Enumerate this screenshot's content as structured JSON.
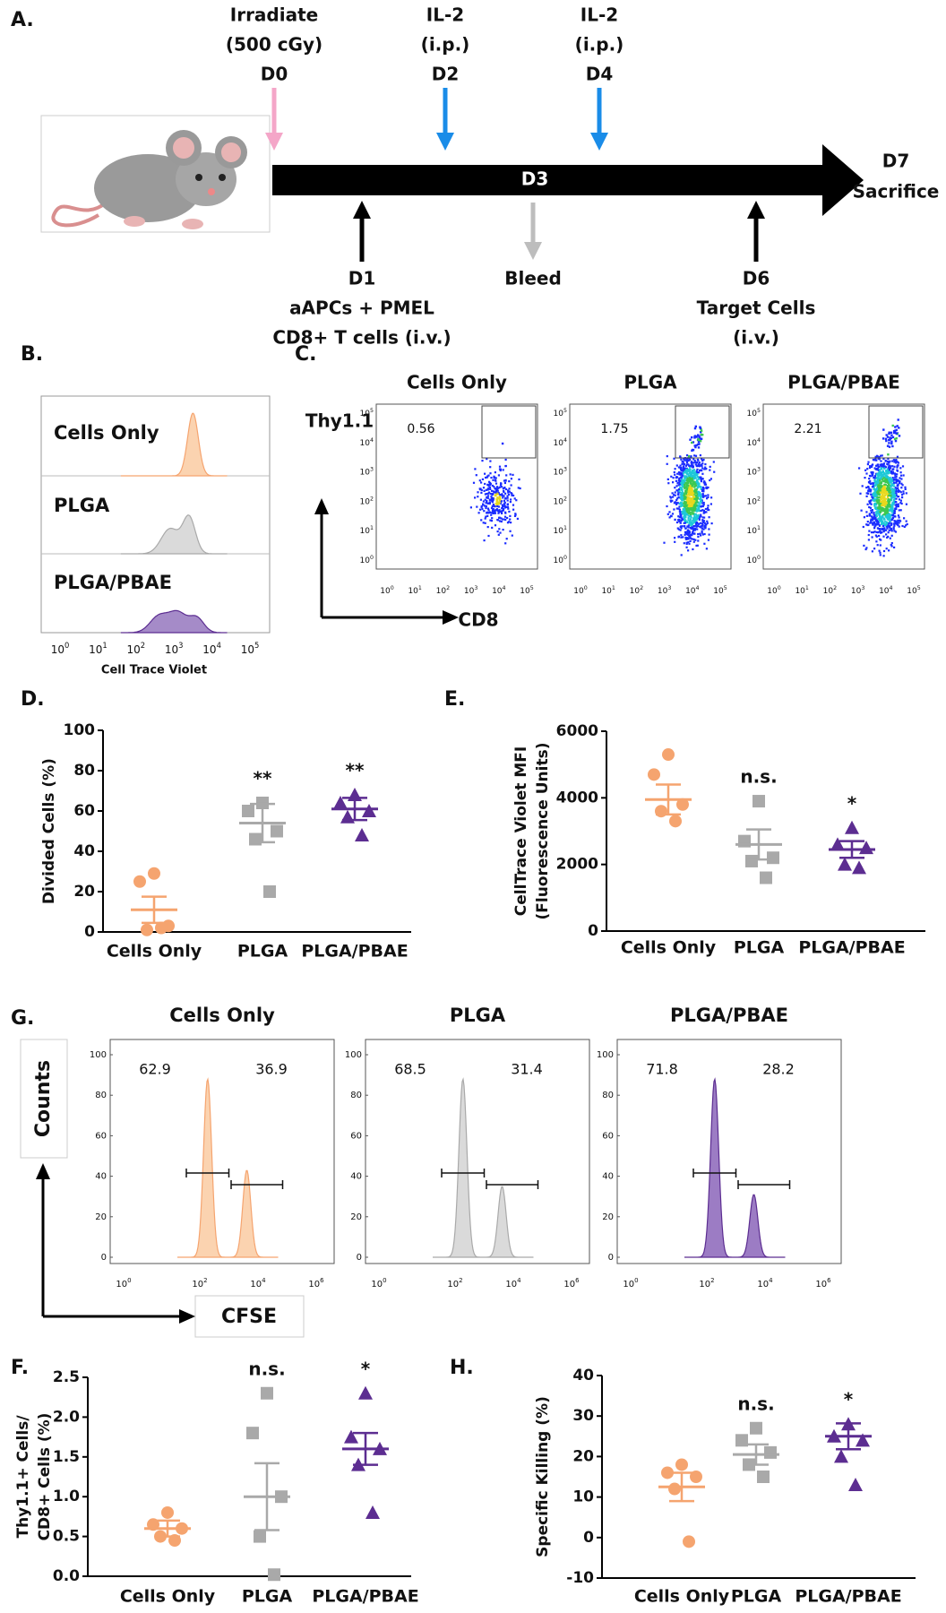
{
  "panel_a": {
    "label": "A.",
    "events": [
      {
        "lines": [
          "Irradiate",
          "(500 cGy)",
          "D0"
        ]
      },
      {
        "lines": [
          "IL-2",
          "(i.p.)",
          "D2"
        ]
      },
      {
        "lines": [
          "IL-2",
          "(i.p.)",
          "D4"
        ]
      },
      {
        "lines": [
          "D1",
          "aAPCs + PMEL",
          "CD8+ T cells (i.v.)"
        ]
      },
      {
        "lines": [
          "Bleed"
        ]
      },
      {
        "lines": [
          "D6",
          "Target Cells",
          "(i.v.)"
        ]
      }
    ],
    "middle": "D3",
    "end": [
      "D7",
      "Sacrifice"
    ]
  },
  "panel_b": {
    "label": "B.",
    "rows": [
      "Cells Only",
      "PLGA",
      "PLGA/PBAE"
    ],
    "x_label": "Cell Trace Violet",
    "x_ticks": {
      "base": "10",
      "exponents": [
        0,
        1,
        2,
        3,
        4,
        5
      ]
    }
  },
  "panel_c": {
    "label": "C.",
    "y_label": "Thy1.1",
    "x_label": "CD8",
    "plots": [
      {
        "title": "Cells Only",
        "gate_percent": 0.56
      },
      {
        "title": "PLGA",
        "gate_percent": 1.75
      },
      {
        "title": "PLGA/PBAE",
        "gate_percent": 2.21
      }
    ],
    "ticks": {
      "base": "10",
      "exponents": [
        0,
        1,
        2,
        3,
        4,
        5
      ]
    }
  },
  "panel_g": {
    "label": "G.",
    "y_label": "Counts",
    "x_label": "CFSE",
    "plots": [
      {
        "title": "Cells Only",
        "left_percent": 62.9,
        "right_percent": 36.9
      },
      {
        "title": "PLGA",
        "left_percent": 68.5,
        "right_percent": 31.4
      },
      {
        "title": "PLGA/PBAE",
        "left_percent": 71.8,
        "right_percent": 28.2
      }
    ],
    "yticks": [
      0,
      20,
      40,
      60,
      80,
      100
    ],
    "xticks": {
      "base": "10",
      "exponents": [
        0,
        2,
        4,
        6
      ]
    }
  },
  "chart_data": [
    {
      "type": "dot",
      "panel_label": "D.",
      "y_label": [
        "Divided Cells (%)"
      ],
      "categories": [
        "Cells Only",
        "PLGA",
        "PLGA/PBAE"
      ],
      "colors": [
        "#f5a46f",
        "#a9a9a9",
        "#5c2d91"
      ],
      "markers": [
        "circle",
        "square",
        "triangle"
      ],
      "points": [
        [
          29,
          25,
          3,
          1,
          2
        ],
        [
          64,
          60,
          50,
          46,
          20
        ],
        [
          68,
          64,
          60,
          57,
          48
        ]
      ],
      "means": [
        11,
        54,
        61
      ],
      "sems": [
        6.5,
        9.5,
        5.5
      ],
      "annotations": [
        null,
        "**",
        "**"
      ],
      "ylim": [
        0,
        100
      ],
      "yticks": [
        0,
        20,
        40,
        60,
        80,
        100
      ]
    },
    {
      "type": "dot",
      "panel_label": "E.",
      "y_label": [
        "CellTrace Violet MFI",
        "(Fluorescence Units)"
      ],
      "categories": [
        "Cells Only",
        "PLGA",
        "PLGA/PBAE"
      ],
      "colors": [
        "#f5a46f",
        "#a9a9a9",
        "#5c2d91"
      ],
      "markers": [
        "circle",
        "square",
        "triangle"
      ],
      "points": [
        [
          5300,
          4700,
          3800,
          3600,
          3300
        ],
        [
          3900,
          2700,
          2200,
          2100,
          1600
        ],
        [
          3100,
          2600,
          2500,
          2000,
          1900
        ]
      ],
      "means": [
        3950,
        2600,
        2450
      ],
      "sems": [
        450,
        450,
        250
      ],
      "annotations": [
        null,
        "n.s.",
        "*"
      ],
      "ylim": [
        0,
        6000
      ],
      "yticks": [
        0,
        2000,
        4000,
        6000
      ]
    },
    {
      "type": "dot",
      "panel_label": "F.",
      "y_label": [
        "Thy1.1+ Cells/",
        "CD8+ Cells (%)"
      ],
      "categories": [
        "Cells Only",
        "PLGA",
        "PLGA/PBAE"
      ],
      "colors": [
        "#f5a46f",
        "#a9a9a9",
        "#5c2d91"
      ],
      "markers": [
        "circle",
        "square",
        "triangle"
      ],
      "points": [
        [
          0.8,
          0.65,
          0.6,
          0.5,
          0.45
        ],
        [
          2.3,
          1.8,
          1.0,
          0.5,
          0.02
        ],
        [
          2.3,
          1.75,
          1.6,
          1.4,
          0.8
        ]
      ],
      "means": [
        0.6,
        1.0,
        1.6
      ],
      "sems": [
        0.1,
        0.42,
        0.2
      ],
      "annotations": [
        null,
        "n.s.",
        "*"
      ],
      "ylim": [
        0,
        2.5
      ],
      "yticks": [
        {
          "value": 0,
          "label": "0.0"
        },
        0.5,
        {
          "value": 1,
          "label": "1.0"
        },
        1.5,
        {
          "value": 2,
          "label": "2.0"
        },
        2.5
      ]
    },
    {
      "type": "dot",
      "panel_label": "H.",
      "y_label": [
        "Specific Killing (%)"
      ],
      "categories": [
        "Cells Only",
        "PLGA",
        "PLGA/PBAE"
      ],
      "colors": [
        "#f5a46f",
        "#a9a9a9",
        "#5c2d91"
      ],
      "markers": [
        "circle",
        "square",
        "triangle"
      ],
      "points": [
        [
          18,
          16,
          15,
          12,
          -1
        ],
        [
          27,
          24,
          21,
          18,
          15
        ],
        [
          28,
          25,
          24,
          20,
          13
        ]
      ],
      "means": [
        12.5,
        20.5,
        25
      ],
      "sems": [
        3.5,
        2.5,
        3.2
      ],
      "annotations": [
        null,
        "n.s.",
        "*"
      ],
      "ylim": [
        -10,
        40
      ],
      "yticks": [
        -10,
        0,
        10,
        20,
        30,
        40
      ]
    }
  ]
}
